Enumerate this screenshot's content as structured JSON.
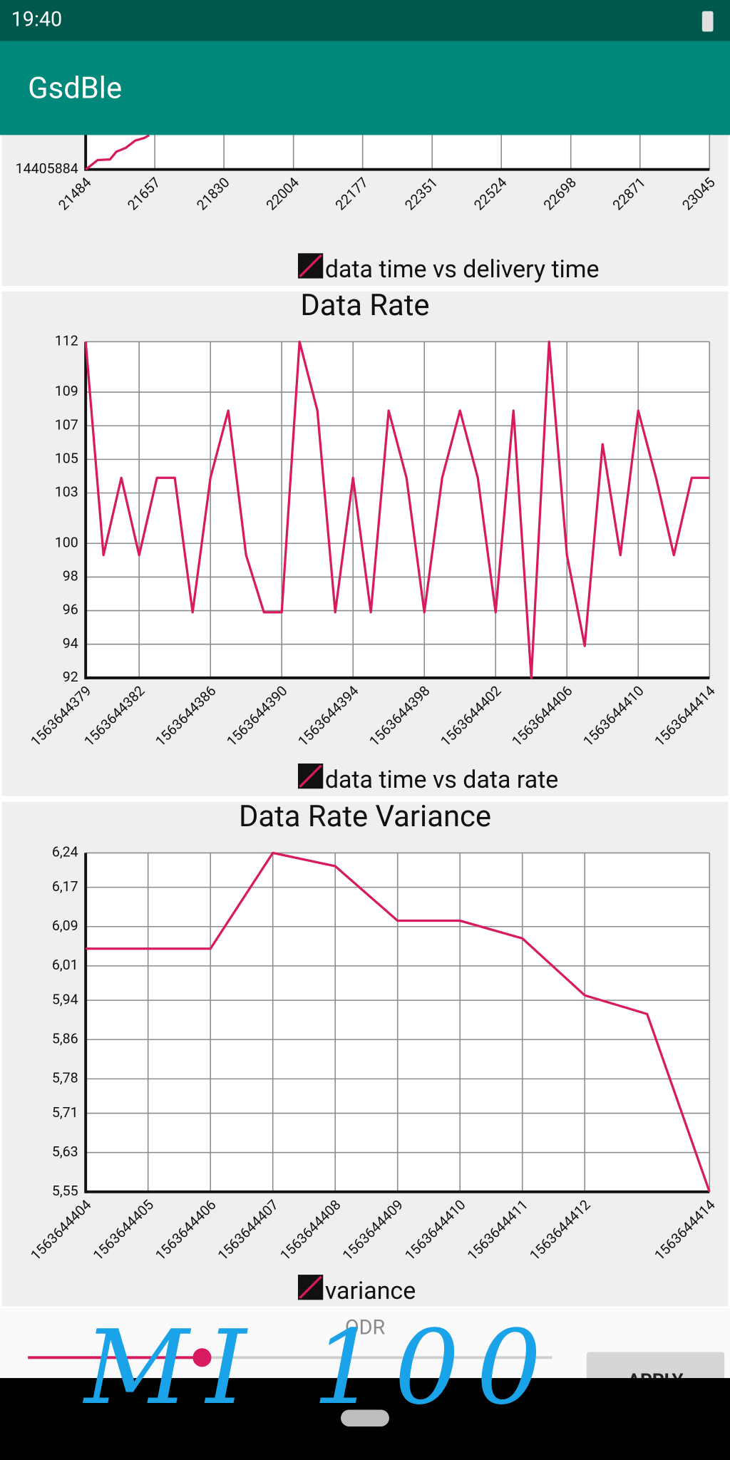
{
  "status_bar": {
    "time": "19:40"
  },
  "app_bar": {
    "title": "GsdBle"
  },
  "chart_data": [
    {
      "type": "line",
      "legend": "bottom",
      "grid": true,
      "x": [
        21484,
        21496,
        21514,
        21545,
        21561,
        21584,
        21608,
        21631,
        21643
      ],
      "series": [
        {
          "name": "data time vs delivery time",
          "color": "#d81b60",
          "values": [
            14405884,
            14405895,
            14405912,
            14405914,
            14405937,
            14405948,
            14405970,
            14405978,
            14405986
          ]
        }
      ],
      "xlim": [
        21484,
        23045
      ],
      "xticks": [
        21484,
        21657,
        21830,
        22004,
        22177,
        22351,
        22524,
        22698,
        22871,
        23045
      ],
      "ylim": [
        14405884,
        14406884
      ],
      "yticks": [
        14405884
      ]
    },
    {
      "type": "line",
      "title": "Data Rate",
      "legend": "bottom",
      "grid": true,
      "x": [
        1563644379,
        1563644380,
        1563644381,
        1563644382,
        1563644383,
        1563644384,
        1563644385,
        1563644386,
        1563644387,
        1563644388,
        1563644389,
        1563644390,
        1563644391,
        1563644392,
        1563644393,
        1563644394,
        1563644395,
        1563644396,
        1563644397,
        1563644398,
        1563644399,
        1563644400,
        1563644401,
        1563644402,
        1563644403,
        1563644404,
        1563644405,
        1563644406,
        1563644407,
        1563644408,
        1563644409,
        1563644410,
        1563644411,
        1563644412,
        1563644413,
        1563644414
      ],
      "series": [
        {
          "name": "data time vs data rate",
          "color": "#d81b60",
          "values": [
            112,
            99.3,
            103.9,
            99.3,
            103.9,
            103.9,
            95.9,
            103.9,
            107.9,
            99.3,
            95.9,
            95.9,
            112,
            107.9,
            95.9,
            103.9,
            95.9,
            107.9,
            103.9,
            95.9,
            103.9,
            107.9,
            103.9,
            95.9,
            107.9,
            92,
            112,
            99.3,
            93.9,
            105.9,
            99.3,
            107.9,
            103.9,
            99.3,
            103.9,
            103.9
          ]
        }
      ],
      "xlim": [
        1563644379,
        1563644414
      ],
      "xticks": [
        1563644379,
        1563644382,
        1563644386,
        1563644390,
        1563644394,
        1563644398,
        1563644402,
        1563644406,
        1563644410,
        1563644414
      ],
      "ylim": [
        92,
        112
      ],
      "yticks": [
        92,
        94,
        96,
        98,
        100,
        103,
        105,
        107,
        109,
        112
      ]
    },
    {
      "type": "line",
      "title": "Data Rate Variance",
      "legend": "bottom",
      "grid": true,
      "x": [
        1563644404,
        1563644406,
        1563644407,
        1563644408,
        1563644409,
        1563644410,
        1563644411,
        1563644412,
        1563644413,
        1563644414
      ],
      "series": [
        {
          "name": "variance",
          "color": "#d81b60",
          "values": [
            6.045,
            6.045,
            6.24,
            6.213,
            6.102,
            6.102,
            6.066,
            5.95,
            5.912,
            5.55
          ]
        }
      ],
      "xlim": [
        1563644404,
        1563644414
      ],
      "xticks": [
        1563644404,
        1563644405,
        1563644406,
        1563644407,
        1563644408,
        1563644409,
        1563644410,
        1563644411,
        1563644412,
        1563644414
      ],
      "ylim": [
        5.55,
        6.24
      ],
      "yticks": [
        {
          "value": 5.55,
          "label": "5,55"
        },
        {
          "value": 5.63,
          "label": "5,63"
        },
        {
          "value": 5.71,
          "label": "5,71"
        },
        {
          "value": 5.78,
          "label": "5,78"
        },
        {
          "value": 5.86,
          "label": "5,86"
        },
        {
          "value": 5.94,
          "label": "5,94"
        },
        {
          "value": 6.01,
          "label": "6,01"
        },
        {
          "value": 6.09,
          "label": "6,09"
        },
        {
          "value": 6.17,
          "label": "6,17"
        },
        {
          "value": 6.24,
          "label": "6,24"
        }
      ]
    }
  ],
  "controls": {
    "slider_label": "ODR",
    "button": "APPLY"
  },
  "annotation": "MI 100"
}
